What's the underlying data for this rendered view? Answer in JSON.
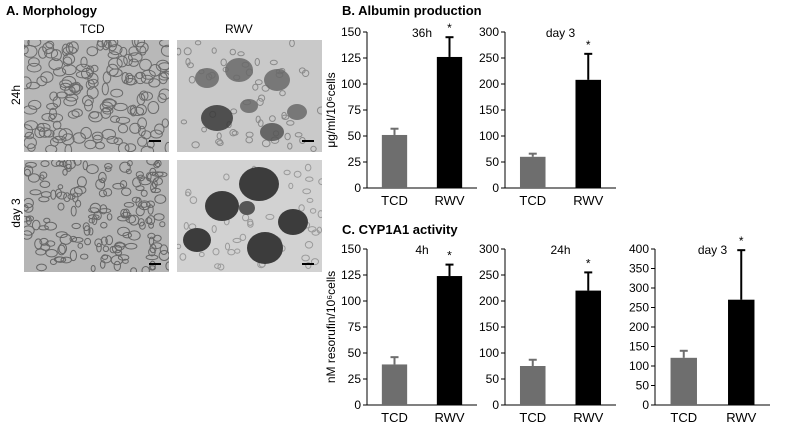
{
  "panels": {
    "morphology": {
      "title": "A.  Morphology",
      "columns": [
        "TCD",
        "RWV"
      ],
      "rows": [
        "24h",
        "day 3"
      ]
    },
    "albumin": {
      "title": "B.  Albumin production"
    },
    "cyp": {
      "title": "C.  CYP1A1 activity"
    }
  },
  "colors": {
    "tcd_bar": "#6e6e6e",
    "rwv_bar": "#000000",
    "micro_tcd": "#b9b9b9",
    "micro_rwv": "#c8c8c8"
  },
  "chart_data": [
    {
      "type": "bar",
      "group": "B. Albumin production",
      "title": "36h",
      "ylabel": "μg/ml/10⁶cells",
      "categories": [
        "TCD",
        "RWV"
      ],
      "values": [
        51,
        126
      ],
      "errors": [
        6,
        19
      ],
      "significance": [
        "",
        "*"
      ],
      "ylim": [
        0,
        150
      ],
      "yticks": [
        0,
        25,
        50,
        75,
        100,
        125,
        150
      ]
    },
    {
      "type": "bar",
      "group": "B. Albumin production",
      "title": "day 3",
      "ylabel": "",
      "categories": [
        "TCD",
        "RWV"
      ],
      "values": [
        60,
        208
      ],
      "errors": [
        6,
        50
      ],
      "significance": [
        "",
        "*"
      ],
      "ylim": [
        0,
        300
      ],
      "yticks": [
        0,
        50,
        100,
        150,
        200,
        250,
        300
      ]
    },
    {
      "type": "bar",
      "group": "C. CYP1A1 activity",
      "title": "4h",
      "ylabel": "nM resorufin/10⁶cells",
      "categories": [
        "TCD",
        "RWV"
      ],
      "values": [
        39,
        124
      ],
      "errors": [
        7,
        11
      ],
      "significance": [
        "",
        "*"
      ],
      "ylim": [
        0,
        150
      ],
      "yticks": [
        0,
        25,
        50,
        75,
        100,
        125,
        150
      ]
    },
    {
      "type": "bar",
      "group": "C. CYP1A1 activity",
      "title": "24h",
      "ylabel": "",
      "categories": [
        "TCD",
        "RWV"
      ],
      "values": [
        75,
        220
      ],
      "errors": [
        12,
        35
      ],
      "significance": [
        "",
        "*"
      ],
      "ylim": [
        0,
        300
      ],
      "yticks": [
        0,
        50,
        100,
        150,
        200,
        250,
        300
      ]
    },
    {
      "type": "bar",
      "group": "C. CYP1A1 activity",
      "title": "day 3",
      "ylabel": "",
      "categories": [
        "TCD",
        "RWV"
      ],
      "values": [
        121,
        270
      ],
      "errors": [
        18,
        127
      ],
      "significance": [
        "",
        "*"
      ],
      "ylim": [
        0,
        400
      ],
      "yticks": [
        0,
        50,
        100,
        150,
        200,
        250,
        300,
        350,
        400
      ]
    }
  ]
}
